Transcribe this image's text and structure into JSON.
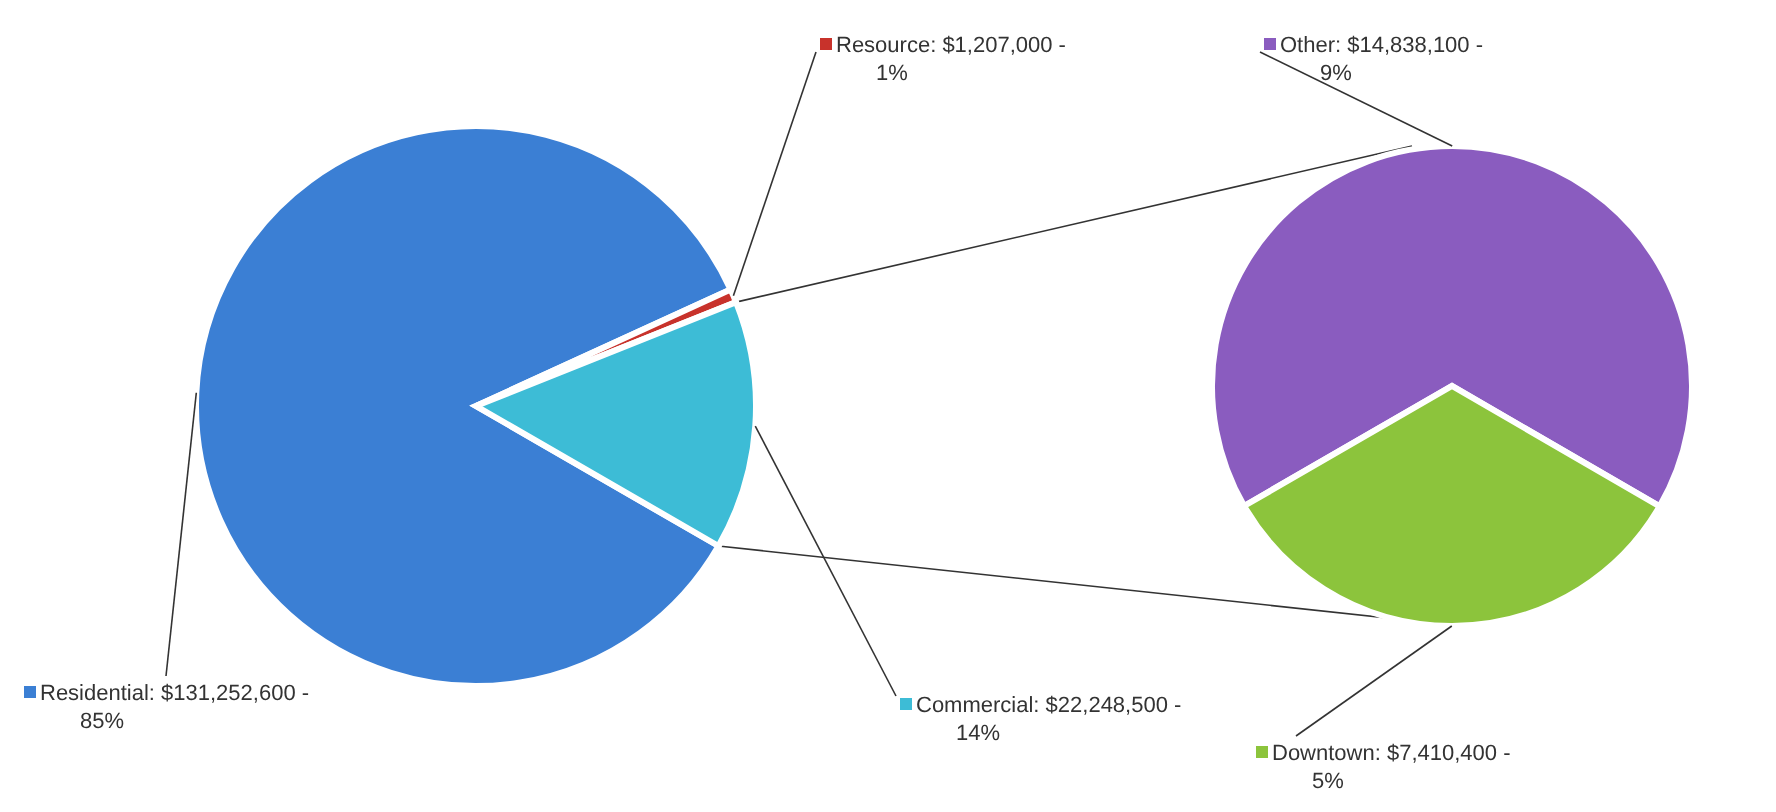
{
  "chart_data": [
    {
      "type": "pie",
      "categories": [
        "Residential",
        "Resource",
        "Commercial"
      ],
      "values": [
        131252600,
        1207000,
        22248500
      ],
      "colors": [
        "#3b7fd4",
        "#c8322b",
        "#3dbcd6"
      ],
      "value_labels": [
        "$131,252,600 - 85%",
        "$1,207,000 - 1%",
        "$22,248,500 - 14%"
      ],
      "legend": "right"
    },
    {
      "type": "pie",
      "categories": [
        "Other",
        "Downtown"
      ],
      "values": [
        14838100,
        7410400
      ],
      "colors": [
        "#8a5cbf",
        "#8cc43c"
      ],
      "value_labels": [
        "$14,838,100 - 9%",
        "$7,410,400 - 5%"
      ],
      "legend": "bottom left"
    }
  ]
}
